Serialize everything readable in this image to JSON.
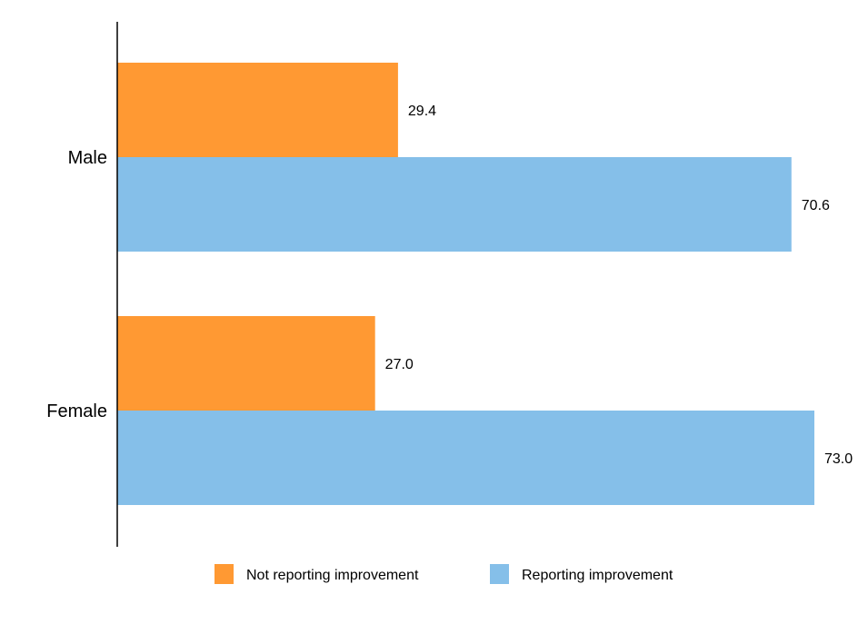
{
  "chart_data": {
    "type": "bar",
    "orientation": "horizontal",
    "categories": [
      "Male",
      "Female"
    ],
    "series": [
      {
        "name": "Not reporting improvement",
        "color": "#FF9933",
        "values": [
          29.4,
          27.0
        ],
        "labels": [
          "29.4",
          "27.0"
        ]
      },
      {
        "name": "Reporting improvement",
        "color": "#85BFE9",
        "values": [
          70.6,
          73.0
        ],
        "labels": [
          "70.6",
          "73.0"
        ]
      }
    ],
    "xlim": [
      0,
      73.0
    ],
    "grid": false,
    "legend_position": "bottom"
  }
}
